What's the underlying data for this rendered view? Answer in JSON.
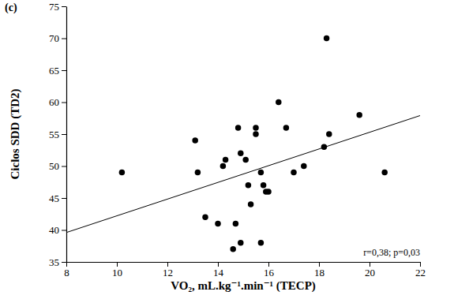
{
  "chart_data": {
    "type": "scatter",
    "title": "(c)",
    "x_label": "VO₂, mL.kg⁻¹.min⁻¹ (TECP)",
    "y_label": "Ciclos SDD (TD2)",
    "annotation": "r=0,38; p=0,03",
    "x": [
      10.2,
      13.1,
      13.2,
      13.5,
      14.0,
      14.2,
      14.3,
      14.6,
      14.7,
      14.8,
      14.9,
      14.9,
      15.1,
      15.2,
      15.3,
      15.5,
      15.5,
      15.7,
      15.7,
      15.8,
      15.9,
      16.0,
      16.4,
      16.7,
      17.0,
      17.4,
      18.2,
      18.3,
      18.4,
      19.6,
      20.6
    ],
    "values": [
      49,
      54,
      49,
      42,
      41,
      50,
      51,
      37,
      41,
      56,
      38,
      52,
      51,
      47,
      44,
      56,
      55,
      49,
      38,
      47,
      46,
      46,
      60,
      56,
      49,
      50,
      53,
      70,
      55,
      58,
      49
    ],
    "color": "#000000",
    "marker": "circle",
    "trend_line": {
      "x": [
        8,
        22
      ],
      "values": [
        39.6,
        57.9
      ],
      "line_style": "solid"
    },
    "xlim": [
      8,
      22
    ],
    "xticks": [
      8,
      10,
      12,
      14,
      16,
      18,
      20,
      22
    ],
    "ylim": [
      35,
      75
    ],
    "yticks": [
      35,
      40,
      45,
      50,
      55,
      60,
      65,
      70,
      75
    ],
    "grid": false
  }
}
